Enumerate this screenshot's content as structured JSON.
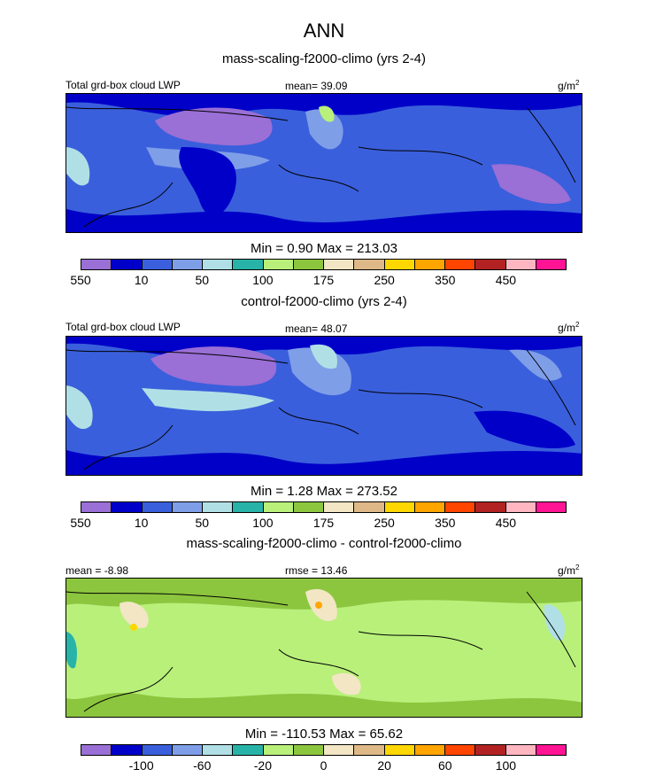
{
  "title": "ANN",
  "units_prefix": "g/m",
  "units_exp": "2",
  "palette": [
    "#9a6fd6",
    "#0000c8",
    "#3a5fdc",
    "#7f9ee8",
    "#b0e0e6",
    "#28b3a8",
    "#b8f07a",
    "#8cc63f",
    "#f2e6c4",
    "#deb887",
    "#ffd700",
    "#ffa500",
    "#ff4500",
    "#b22222",
    "#ffb6c1",
    "#ff1493"
  ],
  "panels": [
    {
      "subtitle": "mass-scaling-f2000-climo (yrs 2-4)",
      "left_label": "Total grd-box cloud LWP",
      "center_label": "mean=  39.09",
      "minmax": "Min =   0.90 Max = 213.03",
      "ticks": [
        "10",
        "50",
        "100",
        "175",
        "250",
        "350",
        "450",
        "550"
      ],
      "base": "#3a5fdc"
    },
    {
      "subtitle": "control-f2000-climo (yrs 2-4)",
      "left_label": "Total grd-box cloud LWP",
      "center_label": "mean=  48.07",
      "minmax": "Min =   1.28 Max = 273.52",
      "ticks": [
        "10",
        "50",
        "100",
        "175",
        "250",
        "350",
        "450",
        "550"
      ],
      "base": "#3a5fdc"
    },
    {
      "subtitle": "mass-scaling-f2000-climo - control-f2000-climo",
      "left_label": "mean =  -8.98",
      "center_label": "rmse =  13.46",
      "minmax": "Min = -110.53 Max =  65.62",
      "ticks": [
        "-100",
        "-60",
        "-20",
        "0",
        "20",
        "60",
        "100"
      ],
      "base": "#b8f07a"
    }
  ]
}
